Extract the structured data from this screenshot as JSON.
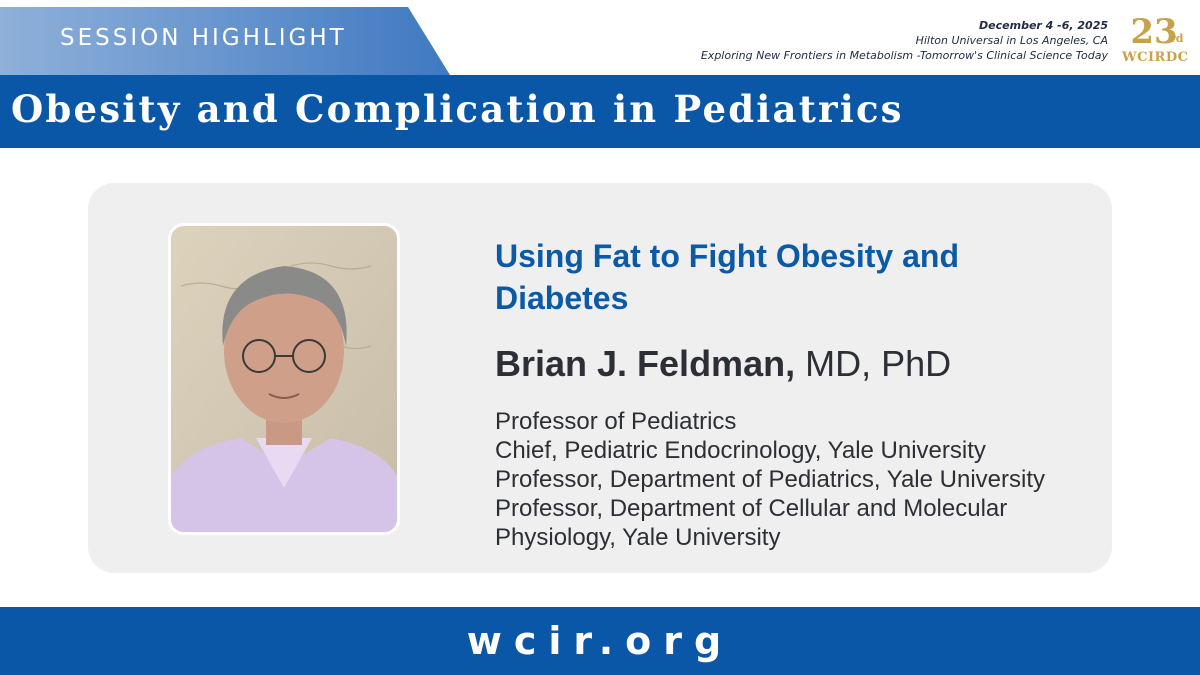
{
  "banner": {
    "label": "SESSION HIGHLIGHT"
  },
  "event": {
    "date": "December 4 -6, 2025",
    "venue": "Hilton Universal in Los Angeles, CA",
    "tagline": "Exploring New Frontiers in Metabolism -Tomorrow's Clinical Science Today",
    "logo_number": "23",
    "logo_suffix": "rd",
    "logo_name": "WCIRDC"
  },
  "session": {
    "title": "Obesity and Complication in Pediatrics"
  },
  "talk": {
    "title": "Using Fat to Fight Obesity and Diabetes"
  },
  "speaker": {
    "name": "Brian J. Feldman,",
    "credentials": " MD, PhD",
    "affiliations": [
      "Professor of Pediatrics",
      "Chief, Pediatric Endocrinology, Yale University",
      "Professor, Department of Pediatrics, Yale University",
      "Professor, Department of Cellular and Molecular",
      "Physiology, Yale University"
    ]
  },
  "footer": {
    "url": "wcir.org"
  },
  "colors": {
    "brand_blue": "#0a57a8",
    "title_blue": "#0b5aa8",
    "logo_gold": "#c8a24a"
  }
}
